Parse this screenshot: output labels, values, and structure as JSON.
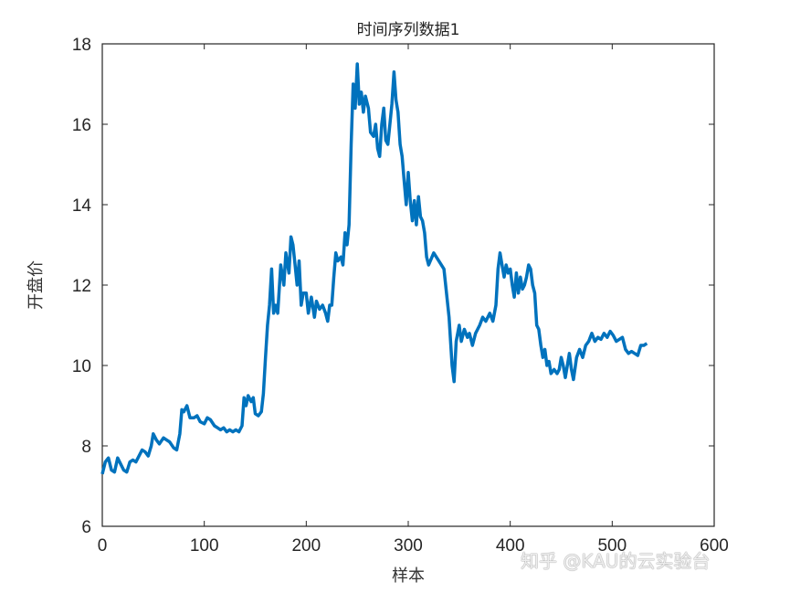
{
  "chart_data": {
    "type": "line",
    "title": "时间序列数据1",
    "xlabel": "样本",
    "ylabel": "开盘价",
    "xlim": [
      0,
      600
    ],
    "ylim": [
      6,
      18
    ],
    "xticks": [
      0,
      100,
      200,
      300,
      400,
      500,
      600
    ],
    "yticks": [
      6,
      8,
      10,
      12,
      14,
      16,
      18
    ],
    "grid": false,
    "legend": null,
    "line_color": "#0072BD",
    "series": [
      {
        "name": "开盘价",
        "x": [
          0,
          3,
          6,
          9,
          12,
          15,
          18,
          21,
          24,
          27,
          30,
          33,
          36,
          39,
          42,
          45,
          48,
          50,
          53,
          56,
          60,
          63,
          66,
          70,
          73,
          76,
          78,
          80,
          83,
          86,
          90,
          93,
          96,
          100,
          103,
          106,
          110,
          113,
          116,
          119,
          122,
          125,
          128,
          131,
          134,
          137,
          139,
          141,
          143,
          146,
          148,
          150,
          153,
          156,
          158,
          160,
          162,
          164,
          166,
          168,
          170,
          172,
          175,
          178,
          180,
          183,
          185,
          187,
          189,
          191,
          193,
          195,
          197,
          200,
          202,
          205,
          208,
          210,
          213,
          216,
          219,
          221,
          223,
          225,
          227,
          229,
          231,
          234,
          236,
          238,
          240,
          242,
          244,
          246,
          248,
          250,
          252,
          254,
          256,
          258,
          261,
          263,
          266,
          268,
          270,
          272,
          274,
          276,
          278,
          280,
          282,
          284,
          286,
          288,
          290,
          292,
          294,
          296,
          298,
          300,
          302,
          304,
          306,
          308,
          310,
          312,
          314,
          316,
          318,
          320,
          325,
          330,
          335,
          340,
          343,
          345,
          347,
          350,
          352,
          355,
          358,
          360,
          363,
          366,
          370,
          373,
          376,
          380,
          383,
          386,
          388,
          390,
          392,
          394,
          396,
          398,
          400,
          402,
          404,
          406,
          408,
          410,
          412,
          414,
          416,
          418,
          420,
          422,
          424,
          426,
          428,
          430,
          432,
          434,
          436,
          438,
          440,
          443,
          446,
          448,
          450,
          452,
          454,
          456,
          458,
          460,
          462,
          465,
          468,
          471,
          474,
          477,
          480,
          483,
          486,
          489,
          492,
          495,
          498,
          501,
          504,
          507,
          510,
          513,
          516,
          519,
          522,
          525,
          528,
          531,
          534
        ],
        "values": [
          7.3,
          7.6,
          7.7,
          7.4,
          7.35,
          7.7,
          7.55,
          7.4,
          7.35,
          7.6,
          7.65,
          7.6,
          7.75,
          7.9,
          7.85,
          7.75,
          8.0,
          8.3,
          8.15,
          8.05,
          8.2,
          8.15,
          8.1,
          7.95,
          7.9,
          8.3,
          8.9,
          8.85,
          9.0,
          8.7,
          8.7,
          8.75,
          8.6,
          8.55,
          8.7,
          8.65,
          8.5,
          8.45,
          8.4,
          8.45,
          8.35,
          8.4,
          8.35,
          8.4,
          8.35,
          8.5,
          9.2,
          9.0,
          9.25,
          9.1,
          9.2,
          8.8,
          8.75,
          8.85,
          9.3,
          10.2,
          11.0,
          11.5,
          12.4,
          11.3,
          11.5,
          11.3,
          12.5,
          12.0,
          12.8,
          12.3,
          13.2,
          13.0,
          12.5,
          12.0,
          12.6,
          11.5,
          11.8,
          11.8,
          11.3,
          11.7,
          11.2,
          11.6,
          11.4,
          11.5,
          11.3,
          11.1,
          11.5,
          11.5,
          12.2,
          12.8,
          12.6,
          12.7,
          12.5,
          13.3,
          13.0,
          13.5,
          15.5,
          17.0,
          16.4,
          17.5,
          16.5,
          16.8,
          16.3,
          16.7,
          16.4,
          15.8,
          15.7,
          16.0,
          15.4,
          15.2,
          16.0,
          16.4,
          15.6,
          15.5,
          16.0,
          16.5,
          17.3,
          16.6,
          16.3,
          15.5,
          15.2,
          14.6,
          14.0,
          14.8,
          14.1,
          13.6,
          14.1,
          13.5,
          14.2,
          13.7,
          13.6,
          13.3,
          12.7,
          12.5,
          12.8,
          12.6,
          12.4,
          11.2,
          10.0,
          9.6,
          10.6,
          11.0,
          10.6,
          10.9,
          10.7,
          10.8,
          10.5,
          10.8,
          11.0,
          11.2,
          11.1,
          11.3,
          11.1,
          11.5,
          12.4,
          12.8,
          12.5,
          12.2,
          12.5,
          12.3,
          12.4,
          12.0,
          11.7,
          12.3,
          11.8,
          12.2,
          11.9,
          12.0,
          12.2,
          12.5,
          12.4,
          12.0,
          11.8,
          11.0,
          10.9,
          10.5,
          10.2,
          10.4,
          10.0,
          10.1,
          9.8,
          9.9,
          9.8,
          9.9,
          10.2,
          10.0,
          9.7,
          10.0,
          10.3,
          9.9,
          9.65,
          10.2,
          10.4,
          10.2,
          10.5,
          10.6,
          10.8,
          10.6,
          10.7,
          10.65,
          10.8,
          10.7,
          10.85,
          10.75,
          10.6,
          10.65,
          10.7,
          10.4,
          10.3,
          10.35,
          10.3,
          10.25,
          10.5,
          10.5,
          10.55
        ]
      }
    ]
  },
  "watermark": "知乎 @KAU的云实验台"
}
